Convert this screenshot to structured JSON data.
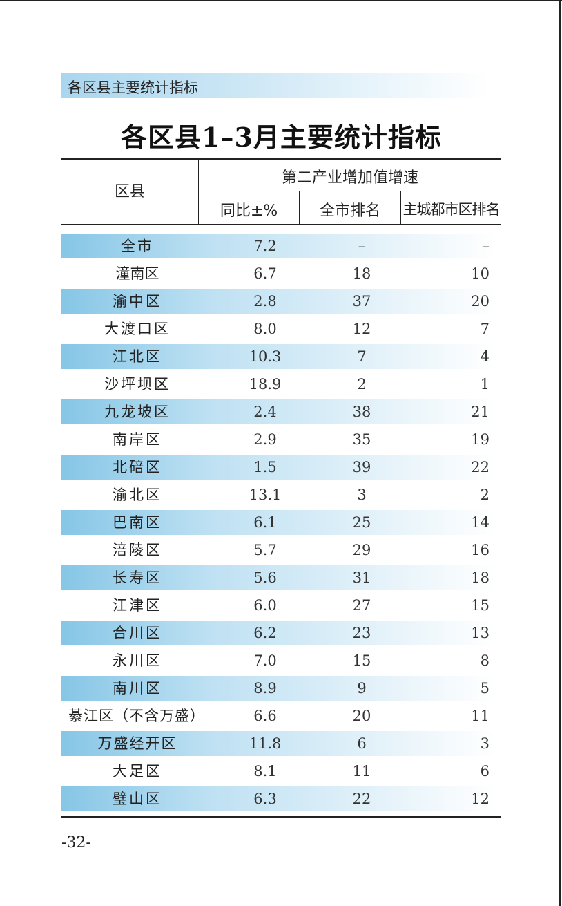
{
  "section_label": "各区县主要统计指标",
  "title": "各区县1–3月主要统计指标",
  "table": {
    "header": {
      "district": "区县",
      "group": "第二产业增加值增速",
      "yoy": "同比±%",
      "city_rank": "全市排名",
      "main_urban_rank": "主城都市区排名"
    },
    "rows": [
      {
        "name": "全市",
        "yoy": "7.2",
        "city_rank": "–",
        "main_urban_rank": "–"
      },
      {
        "name": "潼南区",
        "yoy": "6.7",
        "city_rank": "18",
        "main_urban_rank": "10"
      },
      {
        "name": "渝中区",
        "yoy": "2.8",
        "city_rank": "37",
        "main_urban_rank": "20"
      },
      {
        "name": "大渡口区",
        "yoy": "8.0",
        "city_rank": "12",
        "main_urban_rank": "7"
      },
      {
        "name": "江北区",
        "yoy": "10.3",
        "city_rank": "7",
        "main_urban_rank": "4"
      },
      {
        "name": "沙坪坝区",
        "yoy": "18.9",
        "city_rank": "2",
        "main_urban_rank": "1"
      },
      {
        "name": "九龙坡区",
        "yoy": "2.4",
        "city_rank": "38",
        "main_urban_rank": "21"
      },
      {
        "name": "南岸区",
        "yoy": "2.9",
        "city_rank": "35",
        "main_urban_rank": "19"
      },
      {
        "name": "北碚区",
        "yoy": "1.5",
        "city_rank": "39",
        "main_urban_rank": "22"
      },
      {
        "name": "渝北区",
        "yoy": "13.1",
        "city_rank": "3",
        "main_urban_rank": "2"
      },
      {
        "name": "巴南区",
        "yoy": "6.1",
        "city_rank": "25",
        "main_urban_rank": "14"
      },
      {
        "name": "涪陵区",
        "yoy": "5.7",
        "city_rank": "29",
        "main_urban_rank": "16"
      },
      {
        "name": "长寿区",
        "yoy": "5.6",
        "city_rank": "31",
        "main_urban_rank": "18"
      },
      {
        "name": "江津区",
        "yoy": "6.0",
        "city_rank": "27",
        "main_urban_rank": "15"
      },
      {
        "name": "合川区",
        "yoy": "6.2",
        "city_rank": "23",
        "main_urban_rank": "13"
      },
      {
        "name": "永川区",
        "yoy": "7.0",
        "city_rank": "15",
        "main_urban_rank": "8"
      },
      {
        "name": "南川区",
        "yoy": "8.9",
        "city_rank": "9",
        "main_urban_rank": "5"
      },
      {
        "name": "綦江区（不含万盛）",
        "yoy": "6.6",
        "city_rank": "20",
        "main_urban_rank": "11"
      },
      {
        "name": "万盛经开区",
        "yoy": "11.8",
        "city_rank": "6",
        "main_urban_rank": "3"
      },
      {
        "name": "大足区",
        "yoy": "8.1",
        "city_rank": "11",
        "main_urban_rank": "6"
      },
      {
        "name": "璧山区",
        "yoy": "6.3",
        "city_rank": "22",
        "main_urban_rank": "12"
      }
    ]
  },
  "page_number": "-32-"
}
